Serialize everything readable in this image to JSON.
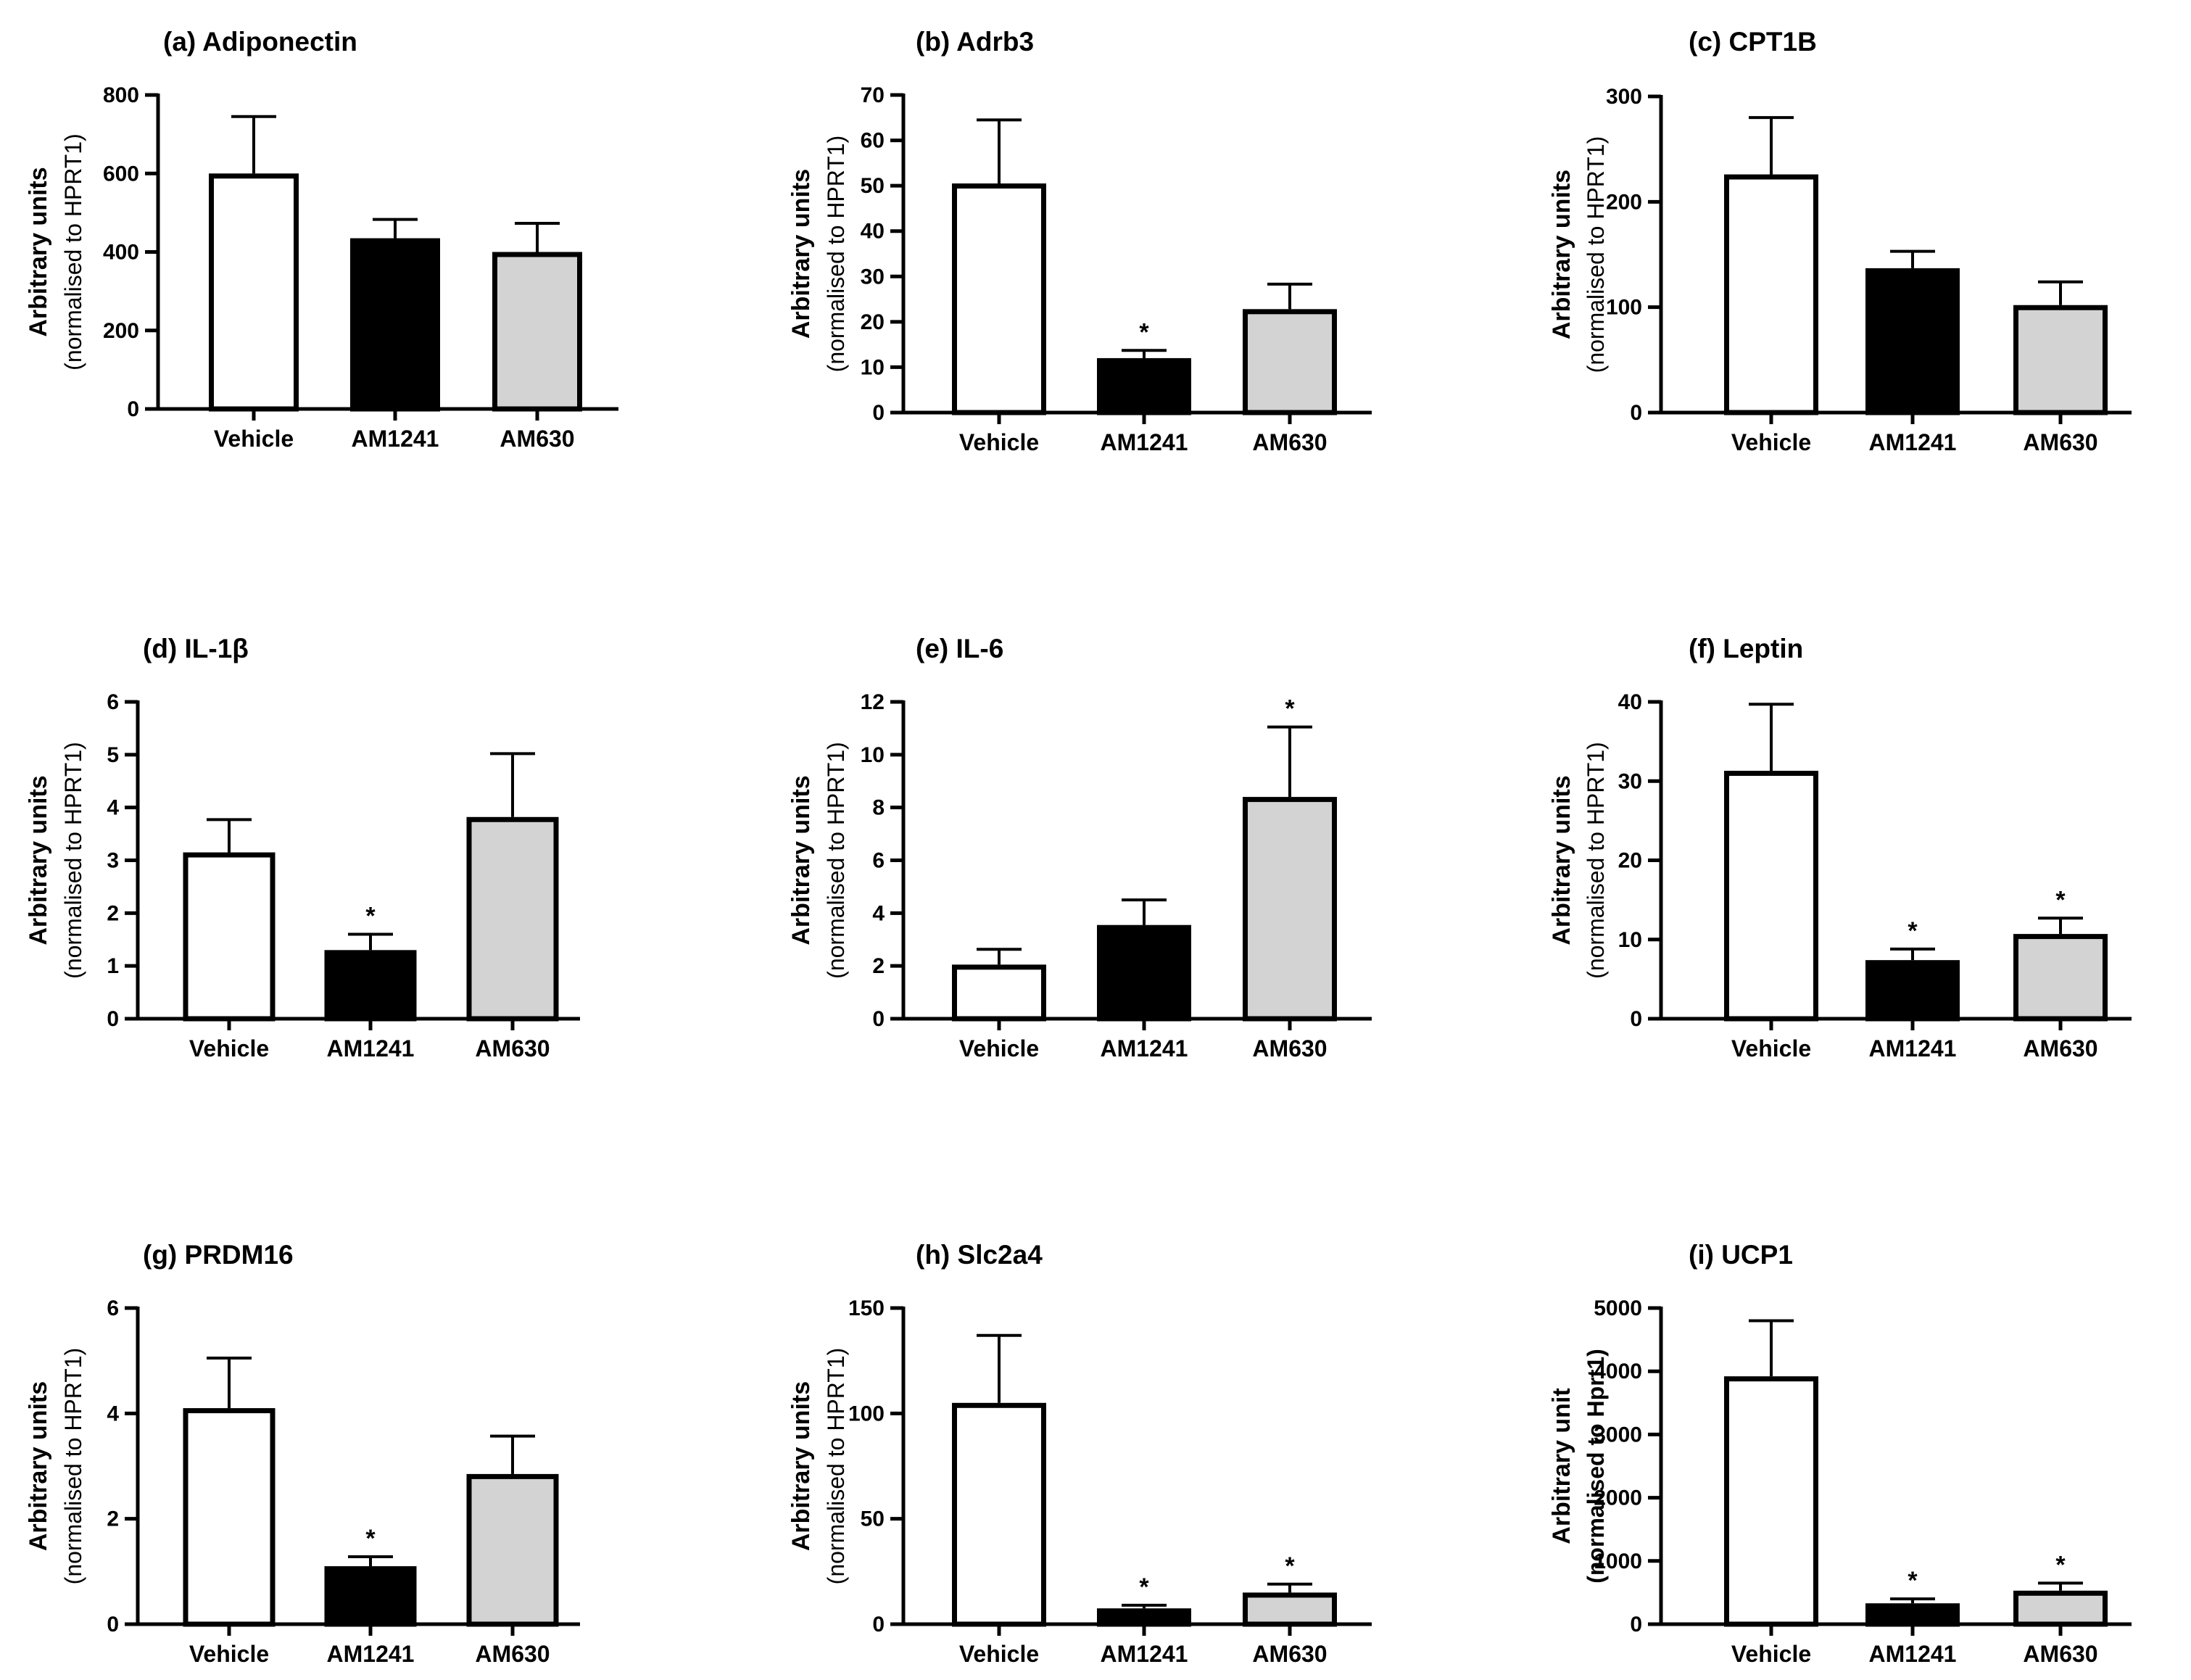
{
  "chart_data": [
    {
      "type": "bar",
      "title": "(a) Adiponectin",
      "ylabel": "Arbitrary units",
      "ylabel_sub": "(normalised to HPRT1)",
      "ylabel_sub_bold": false,
      "categories": [
        "Vehicle",
        "AM1241",
        "AM630"
      ],
      "values": [
        600,
        435,
        400
      ],
      "errors": [
        145,
        48,
        73
      ],
      "significance": [
        "",
        "",
        ""
      ],
      "ylim": [
        0,
        800
      ],
      "yticks": [
        "0",
        "200",
        "400",
        "600",
        "800"
      ],
      "colors": [
        "#ffffff",
        "#000000",
        "#d3d3d3"
      ]
    },
    {
      "type": "bar",
      "title": "(b) Adrb3",
      "ylabel": "Arbitrary units",
      "ylabel_sub": "(normalised to HPRT1)",
      "ylabel_sub_bold": false,
      "categories": [
        "Vehicle",
        "AM1241",
        "AM630"
      ],
      "values": [
        50.5,
        12,
        22.8
      ],
      "errors": [
        14,
        1.7,
        5.5
      ],
      "significance": [
        "",
        "*",
        ""
      ],
      "ylim": [
        0,
        70
      ],
      "yticks": [
        "0",
        "10",
        "20",
        "30",
        "40",
        "50",
        "60",
        "70"
      ],
      "colors": [
        "#ffffff",
        "#000000",
        "#d3d3d3"
      ]
    },
    {
      "type": "bar",
      "title": "(c) CPT1B",
      "ylabel": "Arbitrary units",
      "ylabel_sub": "(normalised to HPRT1)",
      "ylabel_sub_bold": false,
      "categories": [
        "Vehicle",
        "AM1241",
        "AM630"
      ],
      "values": [
        226,
        137,
        102
      ],
      "errors": [
        54,
        16,
        22
      ],
      "significance": [
        "",
        "",
        ""
      ],
      "ylim": [
        0,
        300
      ],
      "yticks": [
        "0",
        "100",
        "200",
        "300"
      ],
      "colors": [
        "#ffffff",
        "#000000",
        "#d3d3d3"
      ]
    },
    {
      "type": "bar",
      "title": "(d) IL-1β",
      "ylabel": "Arbitrary units",
      "ylabel_sub": "(normalised to HPRT1)",
      "ylabel_sub_bold": false,
      "categories": [
        "Vehicle",
        "AM1241",
        "AM630"
      ],
      "values": [
        3.15,
        1.3,
        3.82
      ],
      "errors": [
        0.62,
        0.3,
        1.2
      ],
      "significance": [
        "",
        "*",
        ""
      ],
      "ylim": [
        0,
        6
      ],
      "yticks": [
        "0",
        "1",
        "2",
        "3",
        "4",
        "5",
        "6"
      ],
      "colors": [
        "#ffffff",
        "#000000",
        "#d3d3d3"
      ]
    },
    {
      "type": "bar",
      "title": "(e) IL-6",
      "ylabel": "Arbitrary units",
      "ylabel_sub": "(normalised to HPRT1)",
      "ylabel_sub_bold": false,
      "categories": [
        "Vehicle",
        "AM1241",
        "AM630"
      ],
      "values": [
        2.05,
        3.55,
        8.4
      ],
      "errors": [
        0.58,
        0.95,
        2.65
      ],
      "significance": [
        "",
        "",
        "*"
      ],
      "ylim": [
        0,
        12
      ],
      "yticks": [
        "0",
        "2",
        "4",
        "6",
        "8",
        "10",
        "12"
      ],
      "colors": [
        "#ffffff",
        "#000000",
        "#d3d3d3"
      ]
    },
    {
      "type": "bar",
      "title": "(f) Leptin",
      "ylabel": "Arbitrary units",
      "ylabel_sub": "(normalised to HPRT1)",
      "ylabel_sub_bold": false,
      "categories": [
        "Vehicle",
        "AM1241",
        "AM630"
      ],
      "values": [
        31.3,
        7.4,
        10.7
      ],
      "errors": [
        8.4,
        1.4,
        2.0
      ],
      "significance": [
        "",
        "*",
        "*"
      ],
      "ylim": [
        0,
        40
      ],
      "yticks": [
        "0",
        "10",
        "20",
        "30",
        "40"
      ],
      "colors": [
        "#ffffff",
        "#000000",
        "#d3d3d3"
      ]
    },
    {
      "type": "bar",
      "title": "(g) PRDM16",
      "ylabel": "Arbitrary units",
      "ylabel_sub": "(normalised to HPRT1)",
      "ylabel_sub_bold": false,
      "categories": [
        "Vehicle",
        "AM1241",
        "AM630"
      ],
      "values": [
        4.1,
        1.1,
        2.85
      ],
      "errors": [
        0.95,
        0.18,
        0.72
      ],
      "significance": [
        "",
        "*",
        ""
      ],
      "ylim": [
        0,
        6
      ],
      "yticks": [
        "0",
        "2",
        "4",
        "6"
      ],
      "colors": [
        "#ffffff",
        "#000000",
        "#d3d3d3"
      ]
    },
    {
      "type": "bar",
      "title": "(h) Slc2a4",
      "ylabel": "Arbitrary units",
      "ylabel_sub": "(normalised to HPRT1)",
      "ylabel_sub_bold": false,
      "categories": [
        "Vehicle",
        "AM1241",
        "AM630"
      ],
      "values": [
        105,
        7.5,
        15
      ],
      "errors": [
        32,
        1.5,
        4
      ],
      "significance": [
        "",
        "*",
        "*"
      ],
      "ylim": [
        0,
        150
      ],
      "yticks": [
        "0",
        "50",
        "100",
        "150"
      ],
      "colors": [
        "#ffffff",
        "#000000",
        "#d3d3d3"
      ]
    },
    {
      "type": "bar",
      "title": "(i) UCP1",
      "ylabel": "Arbitrary unit",
      "ylabel_sub": "(normalised to Hprt1)",
      "ylabel_sub_bold": true,
      "categories": [
        "Vehicle",
        "AM1241",
        "AM630"
      ],
      "values": [
        3920,
        330,
        530
      ],
      "errors": [
        880,
        70,
        120
      ],
      "significance": [
        "",
        "*",
        "*"
      ],
      "ylim": [
        0,
        5000
      ],
      "yticks": [
        "0",
        "1000",
        "2000",
        "3000",
        "4000",
        "5000"
      ],
      "colors": [
        "#ffffff",
        "#000000",
        "#d3d3d3"
      ]
    }
  ]
}
